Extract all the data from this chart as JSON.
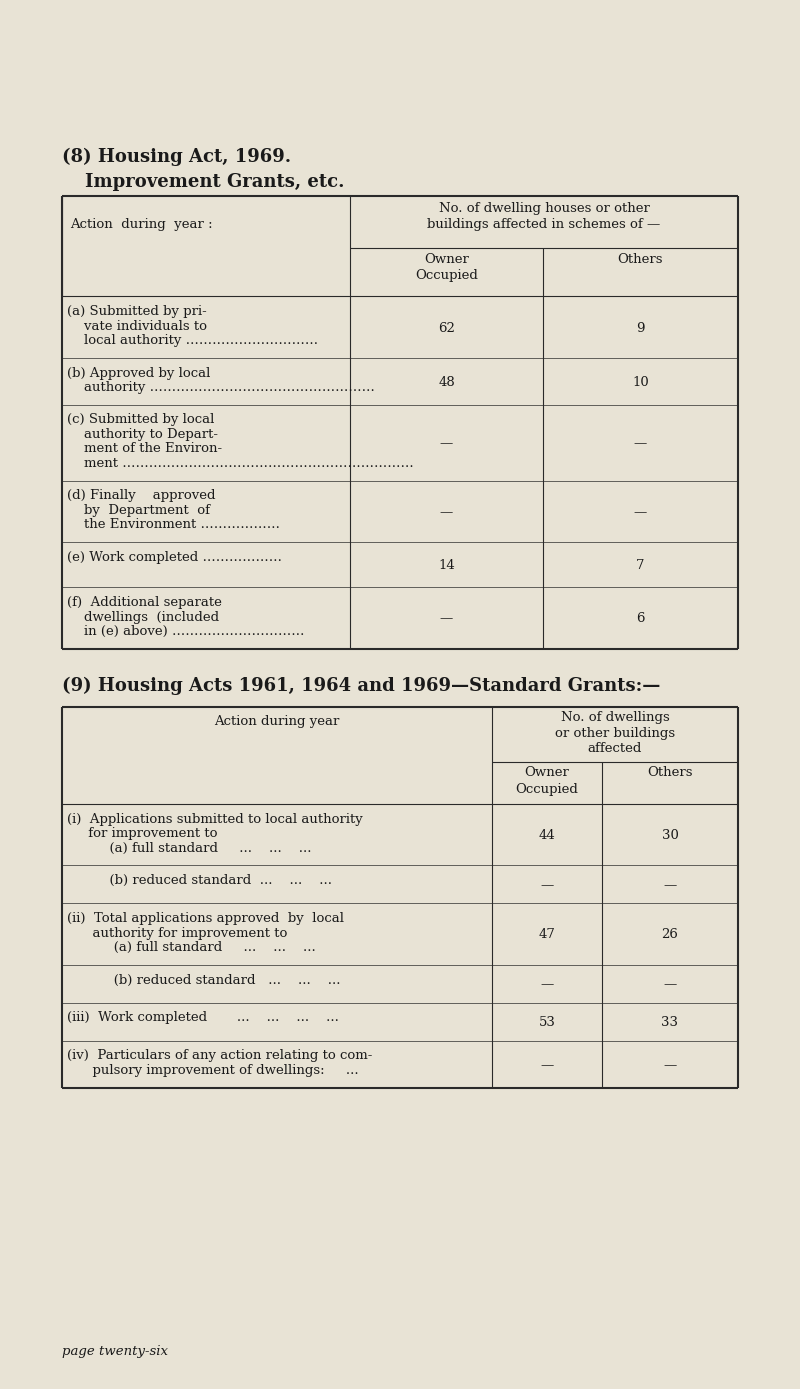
{
  "bg_color": "#e8e3d5",
  "title1": "(8) Housing Act, 1969.",
  "subtitle1": "Improvement Grants, etc.",
  "t1_col0_label": "Action  during  year :",
  "t1_span_header": "No. of dwelling houses or other\nbuildings affected in schemes of —",
  "t1_col1_header": "Owner\nOccupied",
  "t1_col2_header": "Others",
  "table1_rows": [
    {
      "label_lines": [
        "(a) Submitted by pri-",
        "    vate individuals to",
        "    local authority …………………………"
      ],
      "col1": "62",
      "col2": "9"
    },
    {
      "label_lines": [
        "(b) Approved by local",
        "    authority ……………………………………………"
      ],
      "col1": "48",
      "col2": "10"
    },
    {
      "label_lines": [
        "(c) Submitted by local",
        "    authority to Depart-",
        "    ment of the Environ-",
        "    ment …………………………………………………………"
      ],
      "col1": "—",
      "col2": "—"
    },
    {
      "label_lines": [
        "(d) Finally    approved",
        "    by  Department  of",
        "    the Environment ………………"
      ],
      "col1": "—",
      "col2": "—"
    },
    {
      "label_lines": [
        "(e) Work completed ………………"
      ],
      "col1": "14",
      "col2": "7"
    },
    {
      "label_lines": [
        "(f)  Additional separate",
        "    dwellings  (included",
        "    in (e) above) …………………………"
      ],
      "col1": "—",
      "col2": "6"
    }
  ],
  "title2": "(9) Housing Acts 1961, 1964 and 1969—Standard Grants:—",
  "t2_col0_label": "Action during year",
  "t2_span_header": "No. of dwellings\nor other buildings\naffected",
  "t2_col1_header": "Owner\nOccupied",
  "t2_col2_header": "Others",
  "table2_rows": [
    {
      "label_lines": [
        "(i)  Applications submitted to local authority",
        "     for improvement to",
        "          (a) full standard     ...    ...    ..."
      ],
      "col1": "44",
      "col2": "30"
    },
    {
      "label_lines": [
        "          (b) reduced standard  ...    ...    ..."
      ],
      "col1": "—",
      "col2": "—"
    },
    {
      "label_lines": [
        "(ii)  Total applications approved  by  local",
        "      authority for improvement to",
        "           (a) full standard     ...    ...    ..."
      ],
      "col1": "47",
      "col2": "26"
    },
    {
      "label_lines": [
        "           (b) reduced standard   ...    ...    ..."
      ],
      "col1": "—",
      "col2": "—"
    },
    {
      "label_lines": [
        "(iii)  Work completed       ...    ...    ...    ..."
      ],
      "col1": "53",
      "col2": "33"
    },
    {
      "label_lines": [
        "(iv)  Particulars of any action relating to com-",
        "      pulsory improvement of dwellings:     ..."
      ],
      "col1": "—",
      "col2": "—"
    }
  ],
  "footer": "page twenty-six"
}
